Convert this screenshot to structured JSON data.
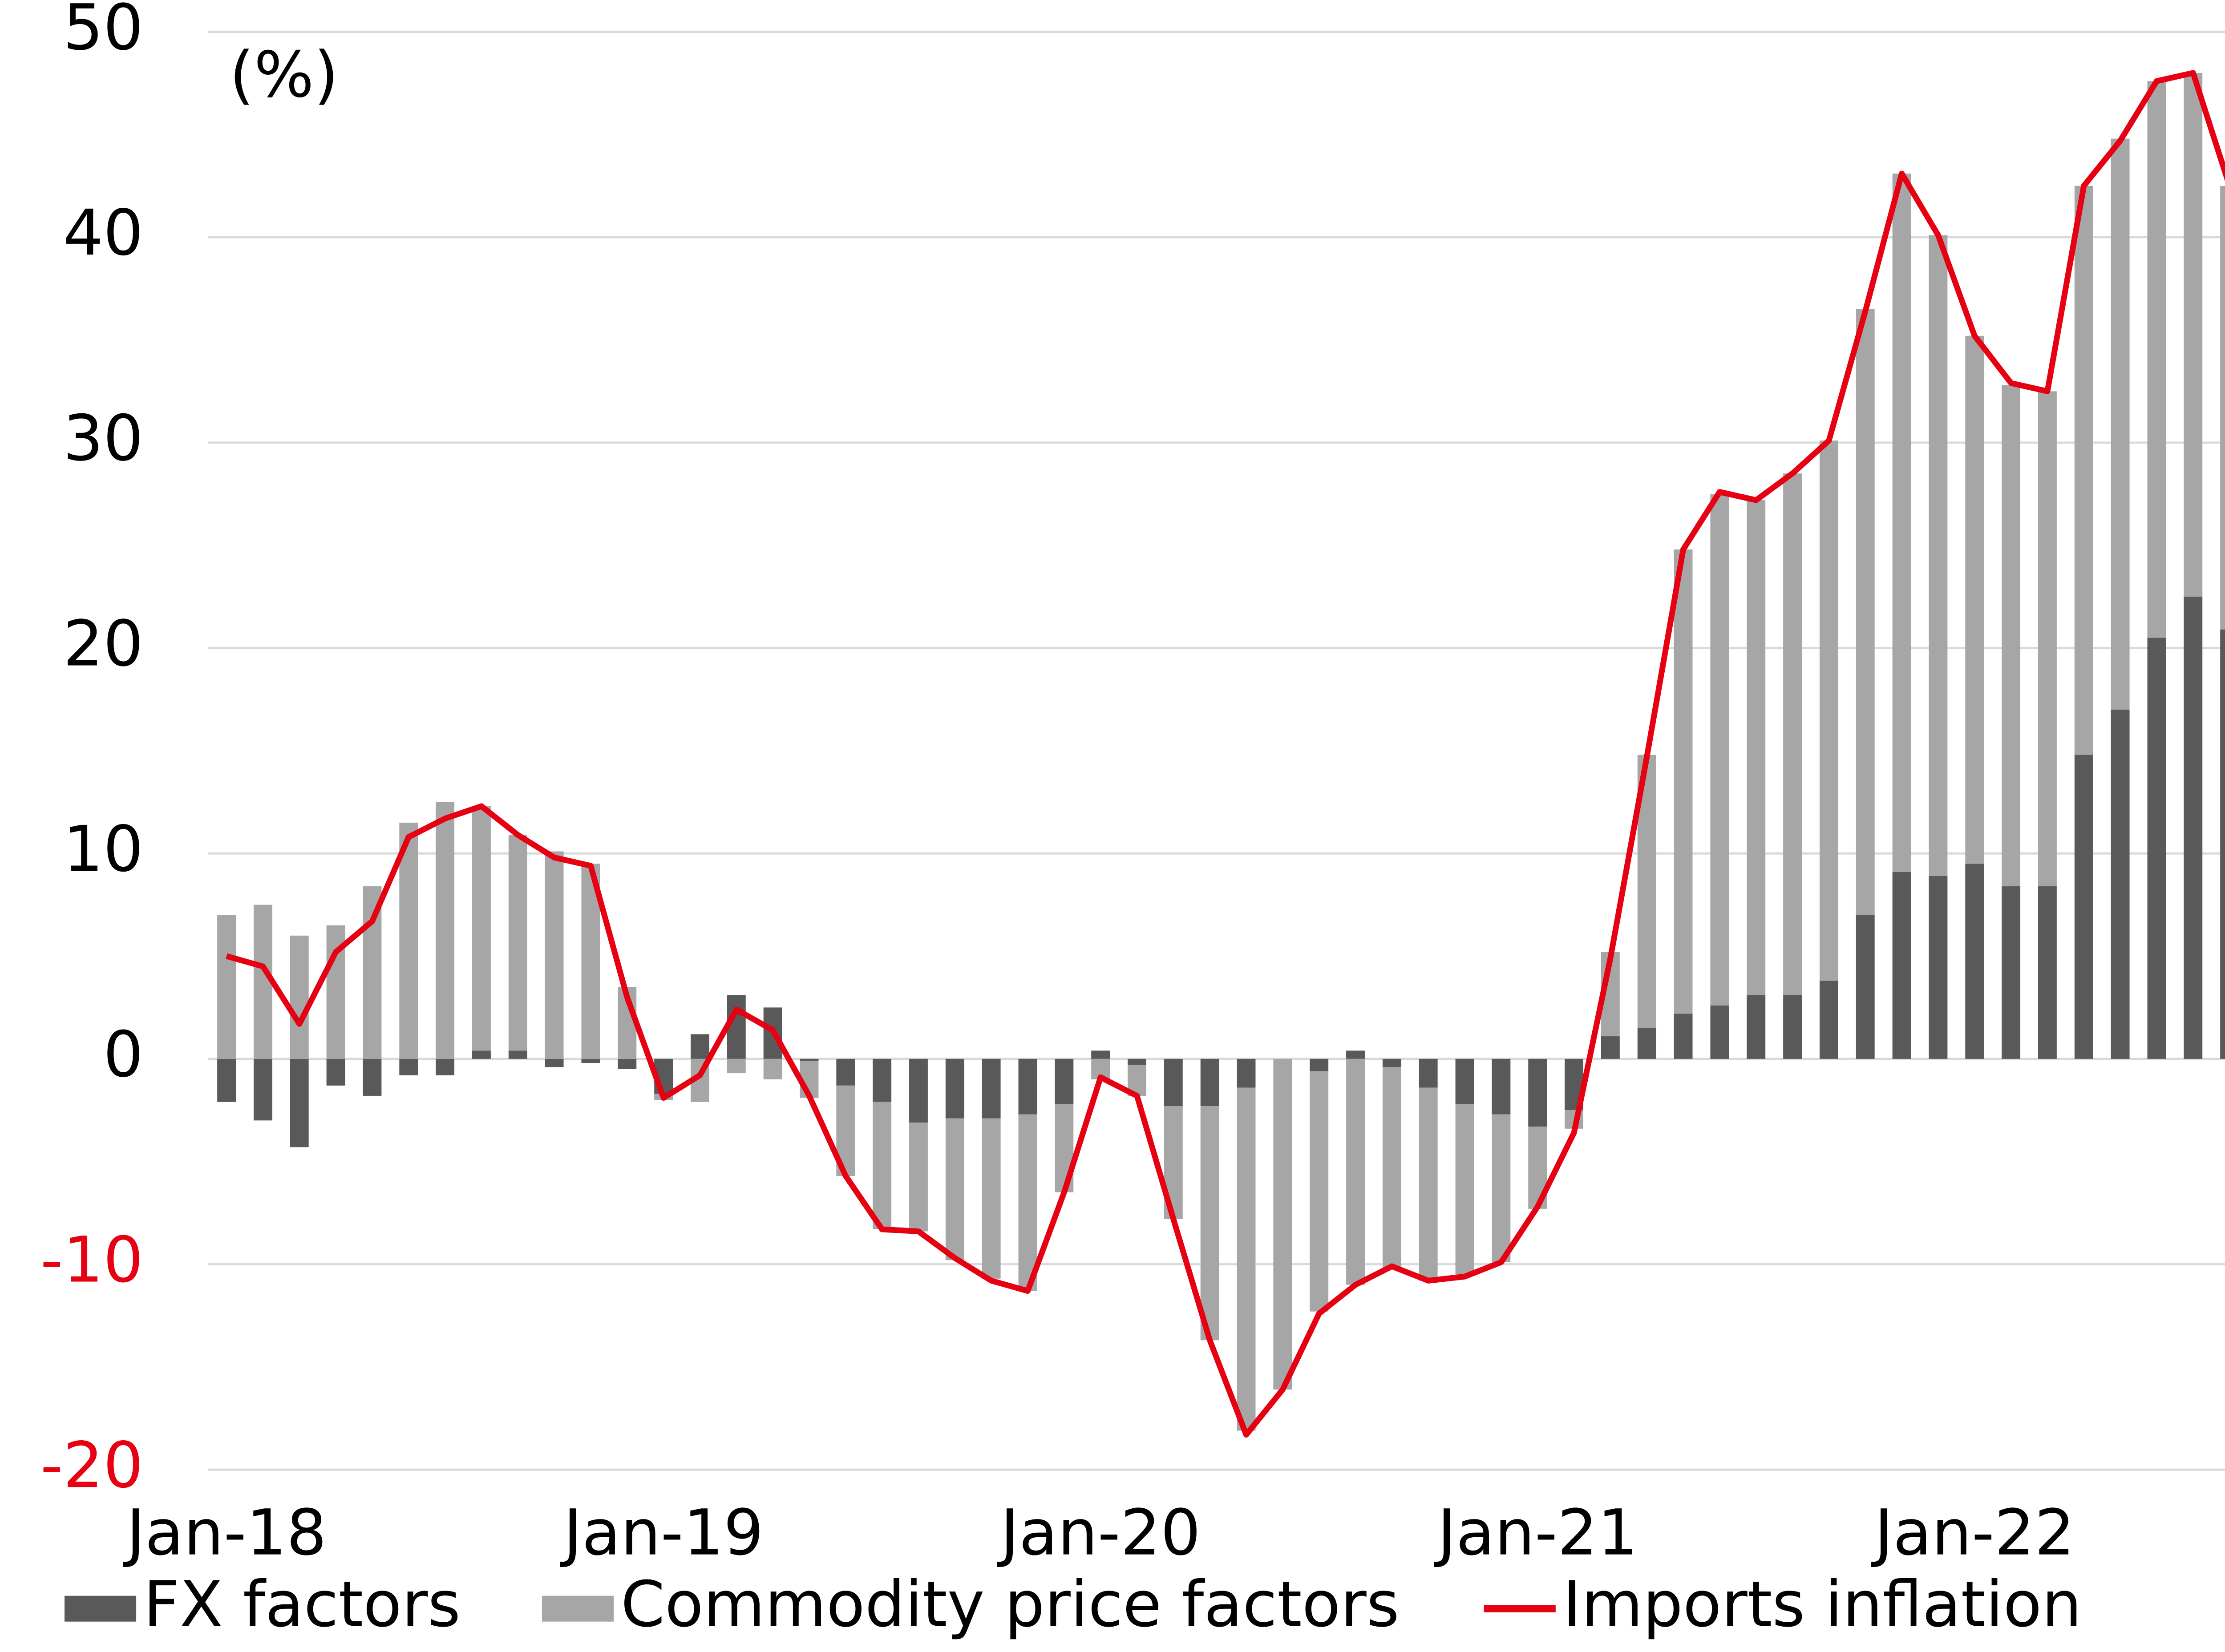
{
  "chart_data": {
    "type": "bar",
    "stacked": true,
    "annotation": "(%)",
    "categories": [
      "Jan-18",
      null,
      null,
      null,
      null,
      null,
      null,
      null,
      null,
      null,
      null,
      null,
      "Jan-19",
      null,
      null,
      null,
      null,
      null,
      null,
      null,
      null,
      null,
      null,
      null,
      "Jan-20",
      null,
      null,
      null,
      null,
      null,
      null,
      null,
      null,
      null,
      null,
      null,
      "Jan-21",
      null,
      null,
      null,
      null,
      null,
      null,
      null,
      null,
      null,
      null,
      null,
      "Jan-22",
      null,
      null,
      null,
      null,
      null,
      null,
      null
    ],
    "series": [
      {
        "name": "FX factors",
        "type": "bar",
        "color": "#595959",
        "values": [
          -2.1,
          -3.0,
          -4.3,
          -1.3,
          -1.8,
          -0.8,
          -0.8,
          0.4,
          0.4,
          -0.4,
          -0.2,
          -0.5,
          -1.7,
          1.2,
          3.1,
          2.5,
          -0.1,
          -1.3,
          -2.1,
          -3.1,
          -2.9,
          -2.9,
          -2.7,
          -2.2,
          0.4,
          -0.3,
          -2.3,
          -2.3,
          -1.4,
          0,
          -0.6,
          0.4,
          -0.4,
          -1.4,
          -2.2,
          -2.7,
          -3.3,
          -2.5,
          1.1,
          1.5,
          2.2,
          2.6,
          3.1,
          3.1,
          3.8,
          7.0,
          9.1,
          8.9,
          9.5,
          8.4,
          8.4,
          14.8,
          17.0,
          20.5,
          22.5,
          20.9
        ]
      },
      {
        "name": "Commodity price factors",
        "type": "bar",
        "color": "#a6a6a6",
        "values": [
          7.0,
          7.5,
          6.0,
          6.5,
          8.4,
          11.5,
          12.5,
          11.9,
          10.5,
          10.1,
          9.5,
          3.5,
          -0.3,
          -2.1,
          -0.7,
          -1.0,
          -1.8,
          -4.4,
          -6.2,
          -5.3,
          -6.9,
          -7.8,
          -8.6,
          -4.3,
          -1.0,
          -1.5,
          -5.5,
          -11.4,
          -16.7,
          -16.1,
          -11.7,
          -11.0,
          -9.8,
          -9.4,
          -8.3,
          -7.2,
          -4.0,
          -0.9,
          4.1,
          13.3,
          22.6,
          24.9,
          24.1,
          25.4,
          26.3,
          29.5,
          34.0,
          31.2,
          25.7,
          24.4,
          24.1,
          27.7,
          27.8,
          27.1,
          25.5,
          21.6
        ]
      },
      {
        "name": "Imports inflation",
        "type": "line",
        "color": "#e60012",
        "values": [
          5.0,
          4.5,
          1.7,
          5.2,
          6.7,
          10.8,
          11.7,
          12.3,
          10.9,
          9.8,
          9.4,
          3.0,
          -1.9,
          -0.8,
          2.4,
          1.4,
          -1.8,
          -5.7,
          -8.3,
          -8.4,
          -9.7,
          -10.8,
          -11.3,
          -6.5,
          -0.9,
          -1.8,
          -7.8,
          -13.7,
          -18.3,
          -16.1,
          -12.4,
          -11.0,
          -10.1,
          -10.8,
          -10.6,
          -9.9,
          -7.2,
          -3.6,
          4.9,
          14.7,
          24.8,
          27.6,
          27.2,
          28.5,
          30.1,
          36.4,
          43.1,
          40.1,
          35.2,
          32.9,
          32.5,
          42.5,
          44.7,
          47.6,
          48.0,
          42.5
        ]
      }
    ],
    "ylim": [
      -20,
      50
    ],
    "yticks": [
      -20,
      -10,
      0,
      10,
      20,
      30,
      40,
      50
    ],
    "grid": true,
    "negative_tick_color": "#e60012",
    "legend": "bottom"
  }
}
